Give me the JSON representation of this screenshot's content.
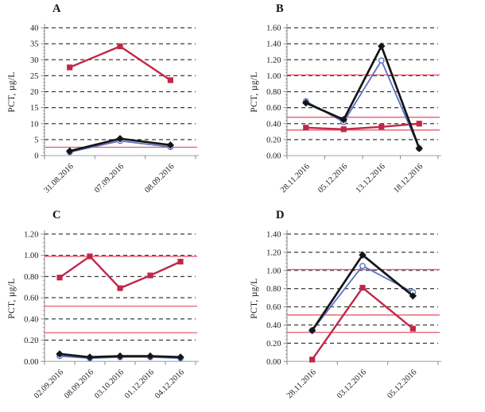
{
  "palette": {
    "background": "#ffffff",
    "grid_dash_color": "#3c3c3c",
    "axis_color": "#8a8a8a",
    "baseline_color": "#b3b3b3",
    "text_color": "#1c1c1c",
    "ref_line_color": "#e8596b"
  },
  "chart_data": [
    {
      "type": "line",
      "title": "A",
      "ylabel": "PCT, µg/L",
      "ylim": [
        0,
        40
      ],
      "ytick_labels": [
        "0",
        "5",
        "10",
        "15",
        "20",
        "25",
        "30",
        "35",
        "40"
      ],
      "grid": "horizontal-dashed",
      "legend": "none",
      "categories": [
        "31.08.2016",
        "07.09.2016",
        "08.09.2016"
      ],
      "series": [
        {
          "name": "red-squares",
          "marker": "square",
          "color": "#c02847",
          "values": [
            27.6,
            34.2,
            23.6
          ]
        },
        {
          "name": "blue-open-circles",
          "marker": "circle-open",
          "color": "#5873c4",
          "values": [
            1.1,
            4.6,
            2.7
          ]
        },
        {
          "name": "black-diamonds",
          "marker": "diamond",
          "color": "#151515",
          "values": [
            1.4,
            5.3,
            3.3
          ]
        }
      ],
      "ref_lines": [
        2.6
      ]
    },
    {
      "type": "line",
      "title": "B",
      "ylabel": "PCT, µg/L",
      "ylim": [
        0,
        1.6
      ],
      "ytick_labels": [
        "0.00",
        "0.20",
        "0.40",
        "0.60",
        "0.80",
        "1.00",
        "1.20",
        "1.40",
        "1.60"
      ],
      "grid": "horizontal-dashed",
      "legend": "none",
      "categories": [
        "28.11.2016",
        "05.12.2016",
        "13.12.2016",
        "18.12.2016"
      ],
      "series": [
        {
          "name": "red-squares",
          "marker": "square",
          "color": "#c02847",
          "values": [
            0.35,
            0.33,
            0.36,
            0.4
          ]
        },
        {
          "name": "blue-open-circles",
          "marker": "circle-open",
          "color": "#5873c4",
          "values": [
            0.68,
            0.42,
            1.19,
            0.09
          ]
        },
        {
          "name": "black-diamonds",
          "marker": "diamond",
          "color": "#151515",
          "values": [
            0.66,
            0.45,
            1.37,
            0.09
          ]
        }
      ],
      "ref_lines": [
        1.01,
        0.48,
        0.32
      ]
    },
    {
      "type": "line",
      "title": "C",
      "ylabel": "PCT, µg/L",
      "ylim": [
        0,
        1.2
      ],
      "ytick_labels": [
        "0.00",
        "0.20",
        "0.40",
        "0.60",
        "0.80",
        "1.00",
        "1.20"
      ],
      "grid": "horizontal-dashed",
      "legend": "none",
      "categories": [
        "02.09.2016",
        "08.09.2016",
        "03.10.2016",
        "01.12.2016",
        "04.12.2016"
      ],
      "series": [
        {
          "name": "red-squares",
          "marker": "square",
          "color": "#c02847",
          "values": [
            0.79,
            0.99,
            0.69,
            0.81,
            0.94
          ]
        },
        {
          "name": "blue-open-circles",
          "marker": "circle-open",
          "color": "#5873c4",
          "values": [
            0.05,
            0.03,
            0.04,
            0.04,
            0.03
          ]
        },
        {
          "name": "black-diamonds",
          "marker": "diamond",
          "color": "#151515",
          "values": [
            0.07,
            0.04,
            0.05,
            0.05,
            0.04
          ]
        }
      ],
      "ref_lines": [
        0.99,
        0.52,
        0.27
      ]
    },
    {
      "type": "line",
      "title": "D",
      "ylabel": "PCT, µg/L",
      "ylim": [
        0,
        1.4
      ],
      "ytick_labels": [
        "0.00",
        "0.20",
        "0.40",
        "0.60",
        "0.80",
        "1.00",
        "1.20",
        "1.40"
      ],
      "grid": "horizontal-dashed",
      "legend": "none",
      "categories": [
        "28.11.2016",
        "03.12.2016",
        "05.12.2016"
      ],
      "series": [
        {
          "name": "red-squares",
          "marker": "square",
          "color": "#c02847",
          "values": [
            0.02,
            0.81,
            0.36
          ]
        },
        {
          "name": "blue-open-circles",
          "marker": "circle-open",
          "color": "#5873c4",
          "values": [
            0.34,
            1.05,
            0.76
          ]
        },
        {
          "name": "black-diamonds",
          "marker": "diamond",
          "color": "#151515",
          "values": [
            0.34,
            1.17,
            0.72
          ]
        }
      ],
      "ref_lines": [
        1.01,
        0.51,
        0.32
      ]
    }
  ]
}
